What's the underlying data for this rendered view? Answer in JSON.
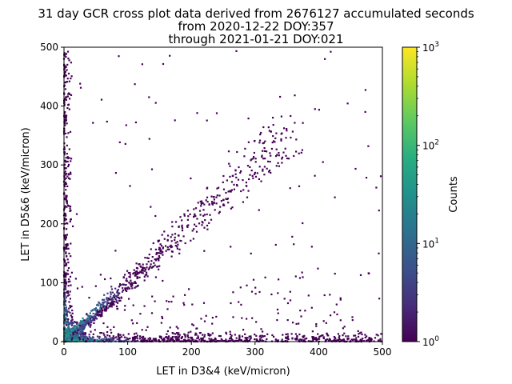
{
  "chart_data": {
    "type": "heatmap",
    "title": [
      "31 day GCR cross plot data derived from 2676127 accumulated seconds",
      "from 2020-12-22 DOY:357",
      "through 2021-01-21 DOY:021"
    ],
    "xlabel": "LET in D3&4 (keV/micron)",
    "ylabel": "LET in D5&6 (keV/micron)",
    "xlim": [
      0,
      500
    ],
    "ylim": [
      0,
      500
    ],
    "xticks": [
      "0",
      "100",
      "200",
      "300",
      "400",
      "500"
    ],
    "yticks": [
      "0",
      "100",
      "200",
      "300",
      "400",
      "500"
    ],
    "colorbar": {
      "label": "Counts",
      "scale": "log",
      "range": [
        1,
        1000
      ],
      "ticks": [
        {
          "base": "10",
          "exp": "0"
        },
        {
          "base": "10",
          "exp": "1"
        },
        {
          "base": "10",
          "exp": "2"
        },
        {
          "base": "10",
          "exp": "3"
        }
      ],
      "colormap": "viridis"
    },
    "features": {
      "diagonal_band": "counts concentrated along x ≈ y from 0 to ~350",
      "axis_bands": "counts concentrated along x ≈ 0 and y ≈ 0",
      "origin_peak": "highest counts near (0, 0)"
    }
  }
}
